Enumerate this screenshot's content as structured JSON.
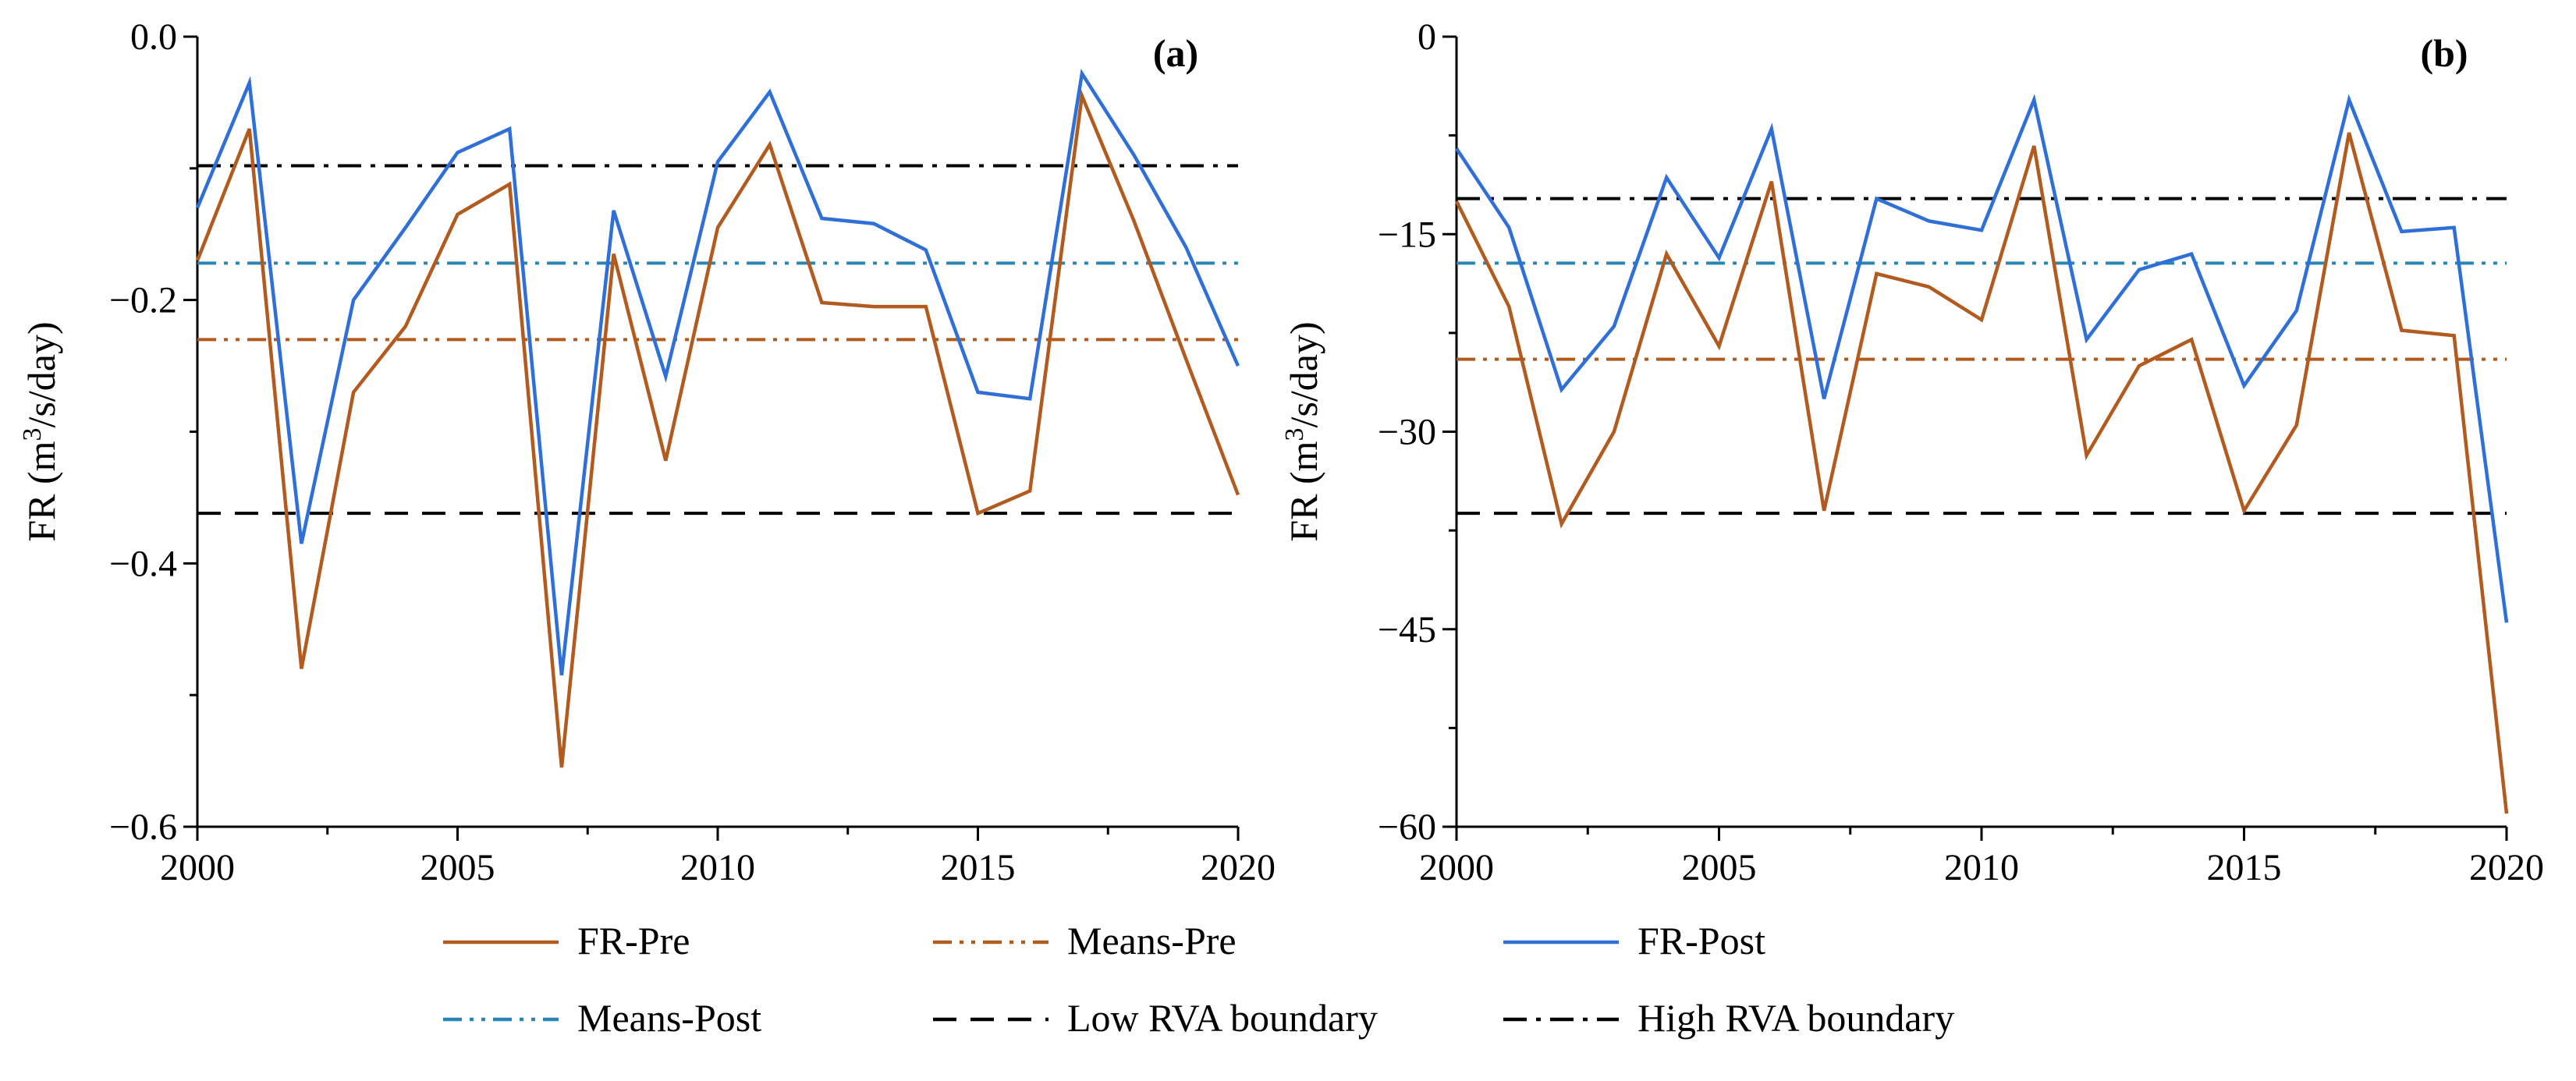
{
  "legend": [
    {
      "label": "FR-Pre",
      "color": "#b35a1f",
      "style": "solid"
    },
    {
      "label": "Means-Pre",
      "color": "#b35a1f",
      "style": "dashdotdot"
    },
    {
      "label": "FR-Post",
      "color": "#2f6fd8",
      "style": "solid"
    },
    {
      "label": "Means-Post",
      "color": "#2a86b5",
      "style": "dashdotdot"
    },
    {
      "label": "Low RVA boundary",
      "color": "#000000",
      "style": "dashed"
    },
    {
      "label": "High RVA boundary",
      "color": "#000000",
      "style": "dashdot"
    }
  ],
  "chart_data": [
    {
      "type": "line",
      "panel_label": "(a)",
      "xlabel": "",
      "ylabel_prefix": "FR (m",
      "ylabel_sup": "3",
      "ylabel_suffix": "/s/day)",
      "xlim": [
        2000,
        2020
      ],
      "ylim": [
        -0.6,
        0.0
      ],
      "xticks": [
        2000,
        2005,
        2010,
        2015,
        2020
      ],
      "yticks": [
        0.0,
        -0.2,
        -0.4,
        -0.6
      ],
      "ytick_labels": [
        "0.0",
        "−0.2",
        "−0.4",
        "−0.6"
      ],
      "x": [
        2000,
        2001,
        2002,
        2003,
        2004,
        2005,
        2006,
        2007,
        2008,
        2009,
        2010,
        2011,
        2012,
        2013,
        2014,
        2015,
        2016,
        2017,
        2018,
        2019,
        2020
      ],
      "series": [
        {
          "name": "FR-Pre",
          "values": [
            -0.17,
            -0.07,
            -0.48,
            -0.27,
            -0.22,
            -0.135,
            -0.112,
            -0.555,
            -0.165,
            -0.322,
            -0.145,
            -0.082,
            -0.202,
            -0.205,
            -0.205,
            -0.362,
            -0.345,
            -0.045,
            -0.14,
            -0.245,
            -0.348
          ]
        },
        {
          "name": "FR-Post",
          "values": [
            -0.13,
            -0.035,
            -0.385,
            -0.2,
            -0.145,
            -0.088,
            -0.07,
            -0.485,
            -0.132,
            -0.258,
            -0.095,
            -0.042,
            -0.138,
            -0.142,
            -0.162,
            -0.27,
            -0.275,
            -0.028,
            -0.09,
            -0.16,
            -0.25
          ]
        }
      ],
      "hlines": [
        {
          "name": "Means-Pre",
          "value": -0.23
        },
        {
          "name": "Means-Post",
          "value": -0.172
        },
        {
          "name": "Low RVA boundary",
          "value": -0.362
        },
        {
          "name": "High RVA boundary",
          "value": -0.098
        }
      ]
    },
    {
      "type": "line",
      "panel_label": "(b)",
      "xlabel": "",
      "ylabel_prefix": "FR (m",
      "ylabel_sup": "3",
      "ylabel_suffix": "/s/day)",
      "xlim": [
        2000,
        2020
      ],
      "ylim": [
        -60,
        0
      ],
      "xticks": [
        2000,
        2005,
        2010,
        2015,
        2020
      ],
      "yticks": [
        0,
        -15,
        -30,
        -45,
        -60
      ],
      "ytick_labels": [
        "0",
        "−15",
        "−30",
        "−45",
        "−60"
      ],
      "x": [
        2000,
        2001,
        2002,
        2003,
        2004,
        2005,
        2006,
        2007,
        2008,
        2009,
        2010,
        2011,
        2012,
        2013,
        2014,
        2015,
        2016,
        2017,
        2018,
        2019,
        2020
      ],
      "series": [
        {
          "name": "FR-Pre",
          "values": [
            -12.5,
            -20.5,
            -37,
            -30,
            -16.5,
            -23.5,
            -11,
            -36,
            -18,
            -19,
            -21.5,
            -8.3,
            -31.8,
            -25,
            -23,
            -36,
            -29.5,
            -7.3,
            -22.3,
            -22.7,
            -59
          ]
        },
        {
          "name": "FR-Post",
          "values": [
            -8.5,
            -14.5,
            -26.8,
            -22,
            -10.7,
            -16.8,
            -7,
            -27.5,
            -12.3,
            -14,
            -14.7,
            -4.8,
            -23,
            -17.7,
            -16.5,
            -26.5,
            -20.8,
            -4.8,
            -14.8,
            -14.5,
            -44.5
          ]
        }
      ],
      "hlines": [
        {
          "name": "Means-Pre",
          "value": -24.5
        },
        {
          "name": "Means-Post",
          "value": -17.2
        },
        {
          "name": "Low RVA boundary",
          "value": -36.2
        },
        {
          "name": "High RVA boundary",
          "value": -12.3
        }
      ]
    }
  ]
}
